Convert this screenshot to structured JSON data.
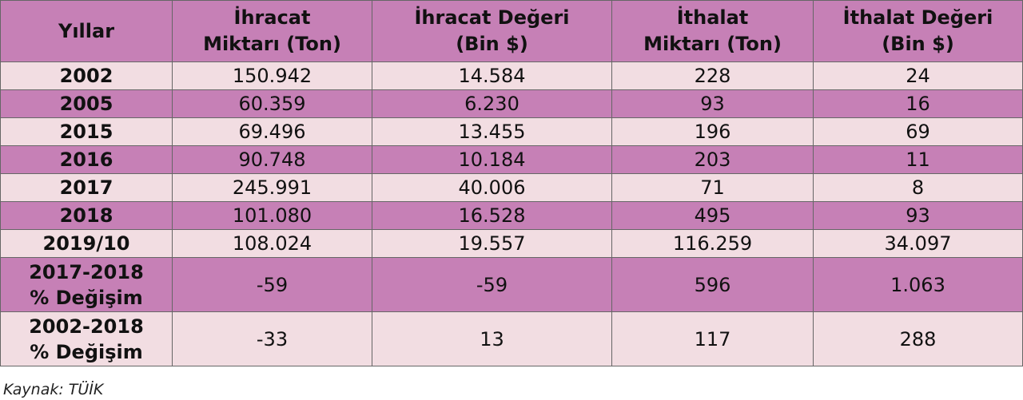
{
  "table": {
    "header": [
      [
        "Yıllar"
      ],
      [
        "İhracat",
        "Miktarı (Ton)"
      ],
      [
        "İhracat Değeri",
        "(Bin $)"
      ],
      [
        "İthalat",
        "Miktarı (Ton)"
      ],
      [
        "İthalat Değeri",
        "(Bin $)"
      ]
    ],
    "rows": [
      [
        [
          "2002"
        ],
        "150.942",
        "14.584",
        "228",
        "24"
      ],
      [
        [
          "2005"
        ],
        "60.359",
        "6.230",
        "93",
        "16"
      ],
      [
        [
          "2015"
        ],
        "69.496",
        "13.455",
        "196",
        "69"
      ],
      [
        [
          "2016"
        ],
        "90.748",
        "10.184",
        "203",
        "11"
      ],
      [
        [
          "2017"
        ],
        "245.991",
        "40.006",
        "71",
        "8"
      ],
      [
        [
          "2018"
        ],
        "101.080",
        "16.528",
        "495",
        "93"
      ],
      [
        [
          "2019/10"
        ],
        "108.024",
        "19.557",
        "116.259",
        "34.097"
      ],
      [
        [
          "2017-2018",
          "% Değişim"
        ],
        "-59",
        "-59",
        "596",
        "1.063"
      ],
      [
        [
          "2002-2018",
          "% Değişim"
        ],
        "-33",
        "13",
        "117",
        "288"
      ]
    ]
  },
  "footer": {
    "source": "Kaynak: TÜİK"
  }
}
